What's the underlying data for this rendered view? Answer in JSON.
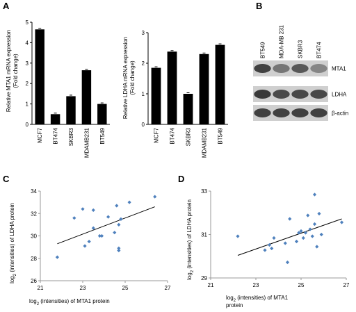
{
  "panels": {
    "a": "A",
    "b": "B",
    "c": "C",
    "d": "D"
  },
  "chart_data": [
    {
      "id": "A1",
      "type": "bar",
      "categories": [
        "MCF7",
        "BT474",
        "SKBR3",
        "MDAMB231",
        "BT549"
      ],
      "values": [
        4.65,
        0.5,
        1.38,
        2.65,
        1.0
      ],
      "ylabel_line1": "Relative MTA1 mRNA expression",
      "ylabel_line2": "(Fold change)",
      "ylim": [
        0,
        5
      ],
      "yticks": [
        "0",
        "1",
        "2",
        "3",
        "4",
        "5"
      ]
    },
    {
      "id": "A2",
      "type": "bar",
      "categories": [
        "MCF7",
        "BT474",
        "SKBR3",
        "MDAMB231",
        "BT549"
      ],
      "values": [
        1.85,
        2.38,
        1.0,
        2.3,
        2.6
      ],
      "ylabel_line1": "Relative LDHA mRNA expression",
      "ylabel_line2": "(Fold change)",
      "ylim": [
        0,
        3
      ],
      "yticks": [
        "0",
        "1",
        "2",
        "3"
      ]
    },
    {
      "id": "C",
      "type": "scatter",
      "x": [
        21.8,
        22.6,
        23.0,
        23.1,
        23.3,
        23.5,
        23.5,
        23.8,
        23.9,
        24.2,
        24.5,
        24.6,
        24.7,
        24.7,
        24.7,
        24.8,
        24.8,
        25.2,
        26.4
      ],
      "y": [
        28.1,
        31.6,
        32.4,
        29.1,
        29.5,
        30.7,
        32.3,
        30.0,
        30.0,
        31.7,
        30.3,
        32.7,
        31.0,
        28.9,
        28.7,
        31.5,
        31.5,
        33.0,
        33.5
      ],
      "trendline": [
        [
          21.8,
          29.3
        ],
        [
          26.4,
          32.6
        ]
      ],
      "xlim": [
        21,
        27
      ],
      "ylim": [
        26,
        34
      ],
      "xticks": [
        "21",
        "23",
        "25",
        "27"
      ],
      "yticks": [
        "26",
        "28",
        "30",
        "32",
        "34"
      ],
      "xlabel_pre": "log",
      "xlabel_sub": "2",
      "xlabel_post": " (intensities) of MTA1 protein",
      "ylabel_pre": "log",
      "ylabel_sub": "2",
      "ylabel_post": " (intensities) of LDHA protein"
    },
    {
      "id": "D",
      "type": "scatter",
      "x": [
        22.2,
        23.4,
        23.6,
        23.7,
        23.8,
        24.3,
        24.4,
        24.5,
        24.8,
        24.9,
        25.0,
        25.1,
        25.2,
        25.3,
        25.4,
        25.5,
        25.6,
        25.6,
        25.7,
        25.8,
        25.9,
        26.8
      ],
      "y": [
        31.4,
        30.6,
        30.9,
        30.7,
        31.3,
        31.0,
        29.9,
        32.4,
        31.1,
        31.6,
        31.7,
        31.3,
        31.6,
        32.6,
        31.8,
        31.4,
        32.1,
        33.8,
        30.8,
        32.7,
        31.5,
        32.2
      ],
      "trendline": [
        [
          22.2,
          30.3
        ],
        [
          26.8,
          32.4
        ]
      ],
      "xlim": [
        21,
        27
      ],
      "ylim": [
        29,
        34
      ],
      "xticks": [
        "21",
        "23",
        "25",
        "27"
      ],
      "yticks": [
        "29",
        "31",
        "33"
      ],
      "xlabel_pre": "log",
      "xlabel_sub": "2",
      "xlabel_post": " (intensities) of MTA1",
      "xlabel_line2": "protein",
      "ylabel_pre": "log",
      "ylabel_sub": "2",
      "ylabel_post": " (intensities) of LDHA protein"
    }
  ],
  "blot": {
    "cell_lines": [
      "BT549",
      "MDA-MB 231",
      "SKBR3",
      "BT474"
    ],
    "proteins": [
      "MTA1",
      "LDHA",
      "β-actin"
    ],
    "intensities": [
      [
        0.9,
        0.55,
        0.75,
        0.45
      ],
      [
        0.95,
        0.85,
        0.85,
        0.85
      ],
      [
        0.9,
        0.9,
        0.9,
        0.9
      ]
    ]
  }
}
